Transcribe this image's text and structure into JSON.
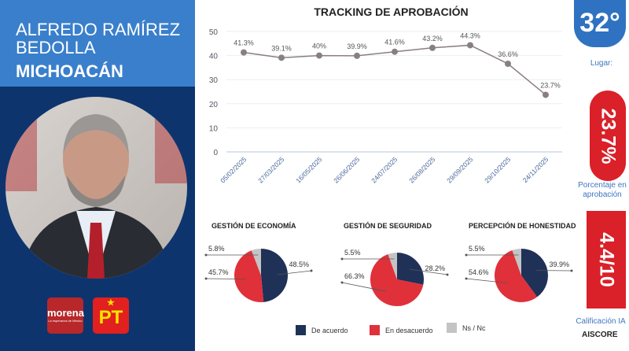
{
  "candidate": {
    "name": "ALFREDO RAMÍREZ BEDOLLA",
    "state": "MICHOACÁN"
  },
  "parties": [
    {
      "name": "morena",
      "tagline": "La esperanza de México",
      "color": "#b8272a"
    },
    {
      "name": "PT",
      "color": "#e2201f"
    }
  ],
  "chart_data": [
    {
      "type": "line",
      "title": "TRACKING DE APROBACIÓN",
      "categories": [
        "05/02/2025",
        "27/03/2025",
        "16/05/2025",
        "26/06/2025",
        "24/07/2025",
        "26/08/2025",
        "29/09/2025",
        "29/10/2025",
        "24/11/2025"
      ],
      "values": [
        41.3,
        39.1,
        40,
        39.9,
        41.6,
        43.2,
        44.3,
        36.6,
        23.7
      ],
      "labels": [
        "41.3%",
        "39.1%",
        "40%",
        "39.9%",
        "41.6%",
        "43.2%",
        "44.3%",
        "36.6%",
        "23.7%"
      ],
      "ylim": [
        0,
        50
      ],
      "yticks": [
        0,
        10,
        20,
        30,
        40,
        50
      ],
      "grid": true,
      "color": "#8a7f80"
    },
    {
      "type": "pie",
      "title": "GESTIÓN DE ECONOMÍA",
      "values": [
        48.5,
        45.7,
        5.8
      ],
      "labels": [
        "48.5%",
        "45.7%",
        "5.8%"
      ]
    },
    {
      "type": "pie",
      "title": "GESTIÓN DE SEGURIDAD",
      "values": [
        28.2,
        66.3,
        5.5
      ],
      "labels": [
        "28.2%",
        "66.3%",
        "5.5%"
      ]
    },
    {
      "type": "pie",
      "title": "PERCEPCIÓN DE HONESTIDAD",
      "values": [
        39.9,
        54.6,
        5.5
      ],
      "labels": [
        "39.9%",
        "54.6%",
        "5.5%"
      ]
    }
  ],
  "legend": [
    {
      "name": "De acuerdo",
      "color": "#1f3157"
    },
    {
      "name": "En desacuerdo",
      "color": "#e0303a"
    },
    {
      "name": "Ns / Nc",
      "color": "#c4c4c4"
    }
  ],
  "stats": {
    "rank": "32°",
    "rank_label": "Lugar:",
    "approval": "23.7%",
    "approval_label": "Porcentaje en aprobación",
    "score": "4.4/10",
    "score_label": "Calificación IA"
  },
  "brand": "AISCORE"
}
